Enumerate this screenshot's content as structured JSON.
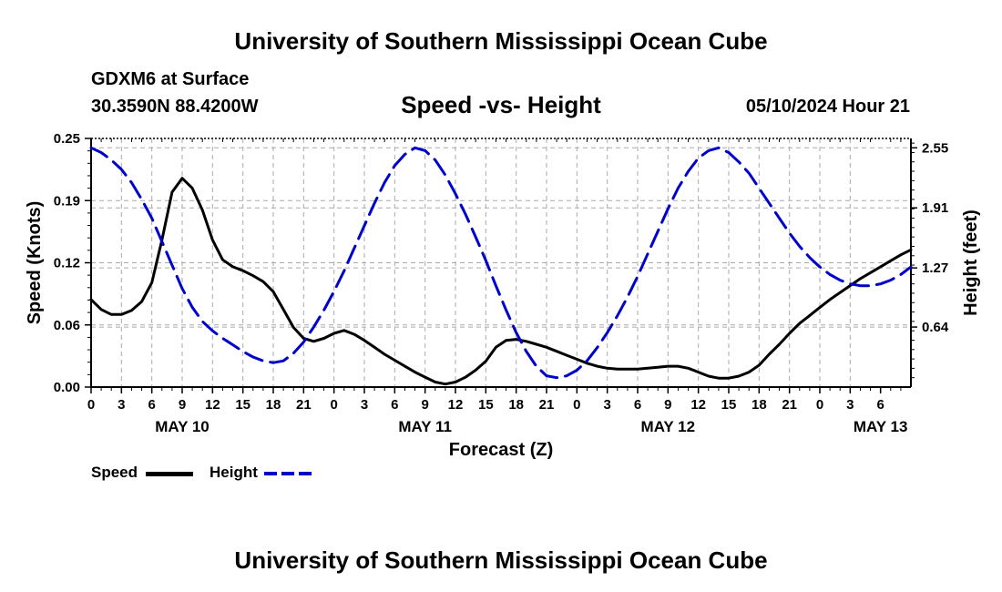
{
  "header": {
    "title": "University of Southern Mississippi Ocean Cube",
    "station": "GDXM6 at Surface",
    "coordinates": "30.3590N  88.4200W",
    "subtitle": "Speed -vs- Height",
    "datetime": "05/10/2024 Hour 21"
  },
  "footer": {
    "title": "University of Southern Mississippi Ocean Cube"
  },
  "legend": {
    "speed_label": "Speed",
    "height_label": "Height"
  },
  "colors": {
    "speed": "#000000",
    "height": "#0000cc",
    "grid": "#aaaaaa"
  },
  "chart_data": {
    "type": "line",
    "xlabel": "Forecast (Z)",
    "ylabel": "Speed (Knots)",
    "y2label": "Height (feet)",
    "x_range": [
      0,
      81
    ],
    "x_tick_labels": [
      "0",
      "3",
      "6",
      "9",
      "12",
      "15",
      "18",
      "21",
      "0",
      "3",
      "6",
      "9",
      "12",
      "15",
      "18",
      "21",
      "0",
      "3",
      "6",
      "9",
      "12",
      "15",
      "18",
      "21",
      "0",
      "3",
      "6"
    ],
    "date_labels": [
      {
        "label": "MAY 10",
        "at_hours": 9
      },
      {
        "label": "MAY 11",
        "at_hours": 33
      },
      {
        "label": "MAY 12",
        "at_hours": 57
      },
      {
        "label": "MAY 13",
        "at_hours": 78
      }
    ],
    "ylim": [
      0,
      0.25
    ],
    "y_ticks": [
      "0.00",
      "0.06",
      "0.12",
      "0.19",
      "0.25"
    ],
    "y2lim": [
      0,
      2.65
    ],
    "y2_ticks": [
      {
        "value": 0.64,
        "label": "0.64"
      },
      {
        "value": 1.27,
        "label": "1.27"
      },
      {
        "value": 1.91,
        "label": "1.91"
      },
      {
        "value": 2.55,
        "label": "2.55"
      }
    ],
    "series": [
      {
        "name": "Speed",
        "axis": "left",
        "style": "solid",
        "x": [
          0,
          1,
          2,
          3,
          4,
          5,
          6,
          7,
          8,
          9,
          10,
          11,
          12,
          13,
          14,
          15,
          16,
          17,
          18,
          19,
          20,
          21,
          22,
          23,
          24,
          25,
          26,
          27,
          28,
          29,
          30,
          31,
          32,
          33,
          34,
          35,
          36,
          37,
          38,
          39,
          40,
          41,
          42,
          43,
          44,
          45,
          46,
          47,
          48,
          49,
          50,
          51,
          52,
          53,
          54,
          55,
          56,
          57,
          58,
          59,
          60,
          61,
          62,
          63,
          64,
          65,
          66,
          67,
          68,
          69,
          70,
          71,
          72,
          73,
          74,
          75,
          76,
          77,
          78,
          79,
          80,
          81
        ],
        "values": [
          0.088,
          0.078,
          0.073,
          0.073,
          0.077,
          0.086,
          0.105,
          0.148,
          0.196,
          0.21,
          0.2,
          0.178,
          0.148,
          0.128,
          0.121,
          0.117,
          0.112,
          0.106,
          0.096,
          0.078,
          0.06,
          0.049,
          0.046,
          0.049,
          0.054,
          0.057,
          0.053,
          0.047,
          0.04,
          0.033,
          0.027,
          0.021,
          0.015,
          0.01,
          0.005,
          0.003,
          0.005,
          0.01,
          0.017,
          0.026,
          0.04,
          0.047,
          0.048,
          0.046,
          0.043,
          0.04,
          0.036,
          0.032,
          0.028,
          0.024,
          0.021,
          0.019,
          0.018,
          0.018,
          0.018,
          0.019,
          0.02,
          0.021,
          0.021,
          0.019,
          0.015,
          0.011,
          0.009,
          0.009,
          0.011,
          0.015,
          0.022,
          0.033,
          0.043,
          0.054,
          0.064,
          0.072,
          0.08,
          0.088,
          0.095,
          0.102,
          0.109,
          0.115,
          0.121,
          0.127,
          0.133,
          0.138
        ]
      },
      {
        "name": "Height",
        "axis": "right",
        "style": "dashed",
        "x": [
          0,
          1,
          2,
          3,
          4,
          5,
          6,
          7,
          8,
          9,
          10,
          11,
          12,
          13,
          14,
          15,
          16,
          17,
          18,
          19,
          20,
          21,
          22,
          23,
          24,
          25,
          26,
          27,
          28,
          29,
          30,
          31,
          32,
          33,
          34,
          35,
          36,
          37,
          38,
          39,
          40,
          41,
          42,
          43,
          44,
          45,
          46,
          47,
          48,
          49,
          50,
          51,
          52,
          53,
          54,
          55,
          56,
          57,
          58,
          59,
          60,
          61,
          62,
          63,
          64,
          65,
          66,
          67,
          68,
          69,
          70,
          71,
          72,
          73,
          74,
          75,
          76,
          77,
          78,
          79,
          80,
          81
        ],
        "values": [
          2.55,
          2.5,
          2.42,
          2.32,
          2.18,
          2.0,
          1.8,
          1.55,
          1.3,
          1.05,
          0.85,
          0.7,
          0.6,
          0.52,
          0.45,
          0.38,
          0.32,
          0.28,
          0.26,
          0.28,
          0.36,
          0.48,
          0.64,
          0.82,
          1.02,
          1.24,
          1.48,
          1.72,
          1.96,
          2.18,
          2.36,
          2.48,
          2.55,
          2.52,
          2.42,
          2.26,
          2.06,
          1.84,
          1.6,
          1.35,
          1.08,
          0.82,
          0.58,
          0.38,
          0.22,
          0.12,
          0.1,
          0.12,
          0.18,
          0.28,
          0.42,
          0.58,
          0.76,
          0.96,
          1.18,
          1.42,
          1.66,
          1.9,
          2.12,
          2.3,
          2.44,
          2.52,
          2.55,
          2.5,
          2.4,
          2.28,
          2.12,
          1.96,
          1.8,
          1.64,
          1.5,
          1.38,
          1.28,
          1.2,
          1.14,
          1.1,
          1.08,
          1.08,
          1.1,
          1.14,
          1.2,
          1.28
        ]
      }
    ]
  }
}
